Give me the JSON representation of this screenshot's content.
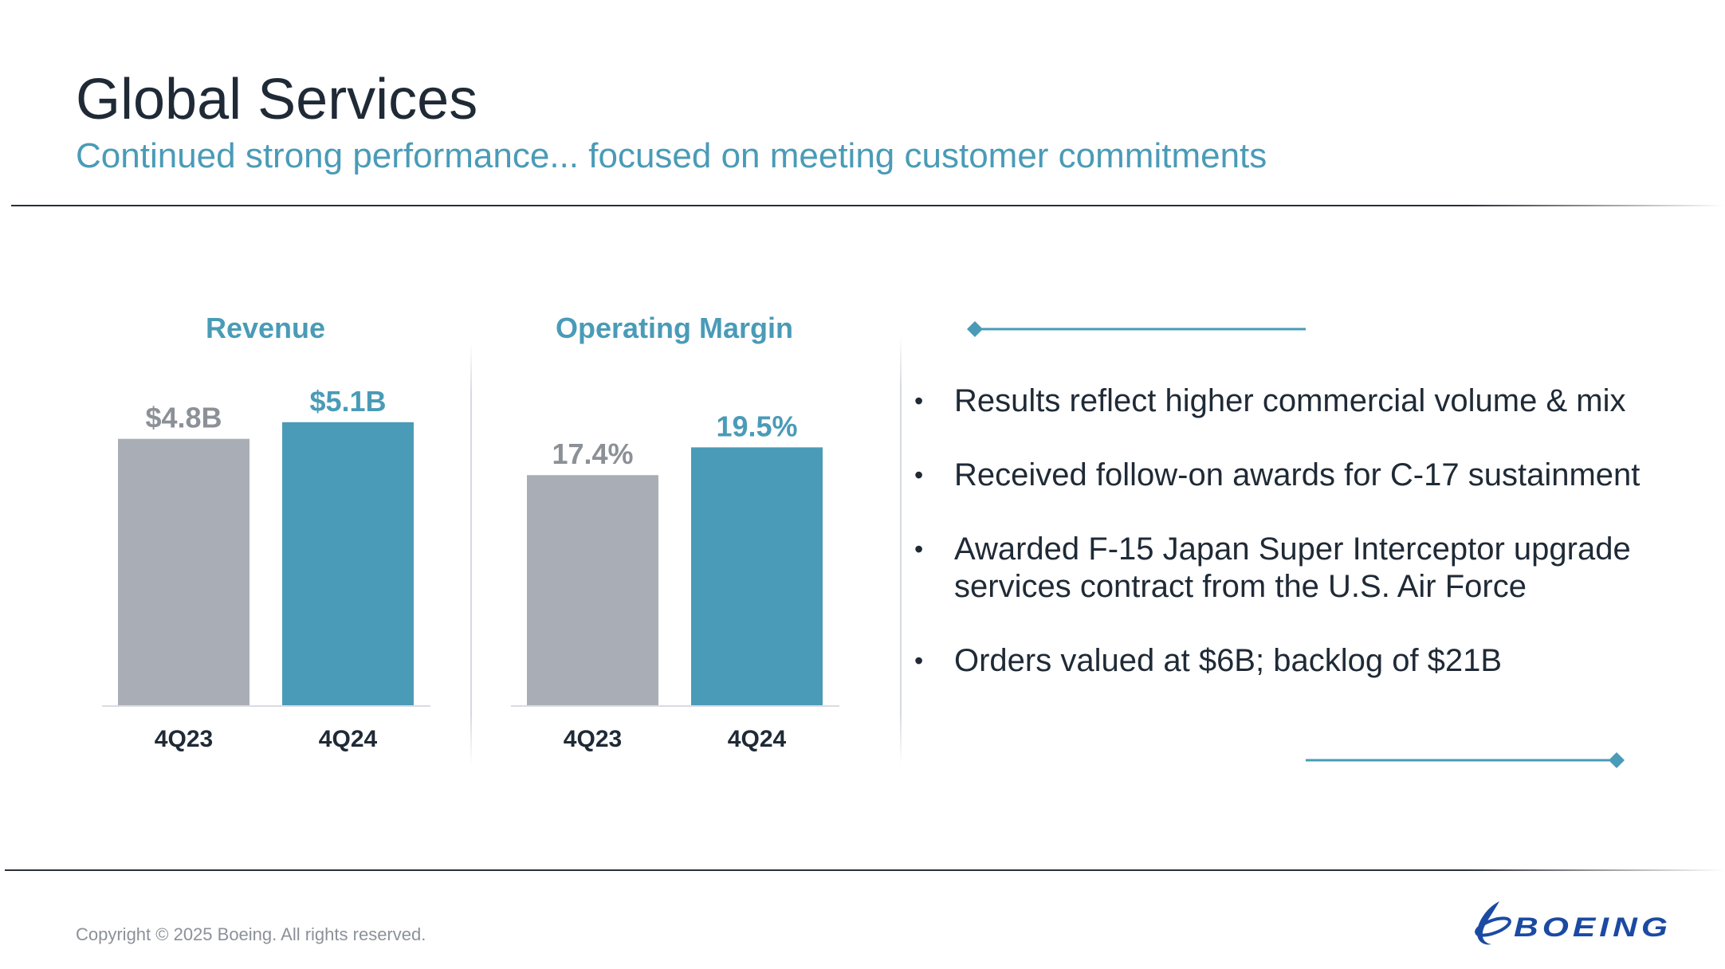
{
  "title": "Global Services",
  "subtitle": "Continued strong performance... focused on meeting customer commitments",
  "colors": {
    "title": "#1f2a36",
    "accent": "#4a9bb7",
    "prior_bar": "#a9aeb6",
    "current_bar": "#4a9bb7",
    "prior_label": "#8c9097"
  },
  "chart_data": [
    {
      "type": "bar",
      "title": "Revenue",
      "categories": [
        "4Q23",
        "4Q24"
      ],
      "values": [
        4.8,
        5.1
      ],
      "data_labels": [
        "$4.8B",
        "$5.1B"
      ],
      "unit": "$B",
      "ylim": [
        0,
        5.6
      ],
      "grid": false,
      "legend": "none"
    },
    {
      "type": "bar",
      "title": "Operating Margin",
      "categories": [
        "4Q23",
        "4Q24"
      ],
      "values": [
        17.4,
        19.5
      ],
      "data_labels": [
        "17.4%",
        "19.5%"
      ],
      "unit": "%",
      "ylim": [
        0,
        23.5
      ],
      "grid": false,
      "legend": "none"
    }
  ],
  "bullets": [
    "Results reflect higher commercial volume & mix",
    "Received follow-on awards for C-17 sustainment",
    "Awarded F-15 Japan Super Interceptor upgrade services contract from the U.S. Air Force",
    "Orders valued at $6B; backlog of $21B"
  ],
  "bullet_glyph": "•",
  "footer": {
    "copyright": "Copyright © 2025 Boeing. All rights reserved.",
    "logo_text": "BOEING"
  },
  "icons": [
    "diamond-icon",
    "boeing-logo-icon"
  ]
}
